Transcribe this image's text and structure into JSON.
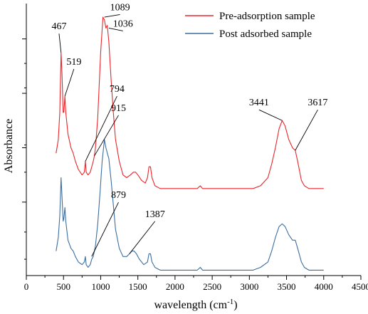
{
  "chart_data": {
    "type": "line",
    "xlabel": "wavelength",
    "xlabel_unit_base": "(cm",
    "xlabel_unit_sup": "-1",
    "xlabel_unit_close": ")",
    "ylabel": "Absorbance",
    "xlim": [
      0,
      4500
    ],
    "ylim": [
      0,
      1
    ],
    "x_ticks": [
      0,
      500,
      1000,
      1500,
      2000,
      2500,
      3000,
      3500,
      4000,
      4500
    ],
    "y_tick_labels_shown": false,
    "grid": false,
    "legend_position": "top-right",
    "series": [
      {
        "name": "Pre-adsorption sample",
        "color": "#e8262b",
        "points": [
          [
            400,
            0.45
          ],
          [
            430,
            0.5
          ],
          [
            450,
            0.6
          ],
          [
            467,
            0.82
          ],
          [
            480,
            0.74
          ],
          [
            495,
            0.6
          ],
          [
            505,
            0.6
          ],
          [
            519,
            0.66
          ],
          [
            530,
            0.6
          ],
          [
            560,
            0.52
          ],
          [
            600,
            0.47
          ],
          [
            630,
            0.45
          ],
          [
            660,
            0.42
          ],
          [
            700,
            0.39
          ],
          [
            750,
            0.37
          ],
          [
            780,
            0.38
          ],
          [
            794,
            0.42
          ],
          [
            805,
            0.38
          ],
          [
            830,
            0.37
          ],
          [
            860,
            0.38
          ],
          [
            900,
            0.42
          ],
          [
            915,
            0.44
          ],
          [
            930,
            0.47
          ],
          [
            960,
            0.58
          ],
          [
            1000,
            0.82
          ],
          [
            1030,
            0.95
          ],
          [
            1050,
            0.94
          ],
          [
            1070,
            0.91
          ],
          [
            1089,
            0.92
          ],
          [
            1110,
            0.86
          ],
          [
            1140,
            0.72
          ],
          [
            1170,
            0.6
          ],
          [
            1200,
            0.5
          ],
          [
            1250,
            0.42
          ],
          [
            1300,
            0.37
          ],
          [
            1350,
            0.36
          ],
          [
            1400,
            0.37
          ],
          [
            1440,
            0.38
          ],
          [
            1470,
            0.38
          ],
          [
            1500,
            0.37
          ],
          [
            1550,
            0.35
          ],
          [
            1600,
            0.34
          ],
          [
            1630,
            0.36
          ],
          [
            1650,
            0.4
          ],
          [
            1670,
            0.4
          ],
          [
            1690,
            0.36
          ],
          [
            1730,
            0.33
          ],
          [
            1800,
            0.32
          ],
          [
            2000,
            0.32
          ],
          [
            2300,
            0.32
          ],
          [
            2340,
            0.33
          ],
          [
            2370,
            0.32
          ],
          [
            2600,
            0.32
          ],
          [
            2900,
            0.32
          ],
          [
            3050,
            0.32
          ],
          [
            3150,
            0.33
          ],
          [
            3250,
            0.36
          ],
          [
            3300,
            0.41
          ],
          [
            3350,
            0.47
          ],
          [
            3400,
            0.54
          ],
          [
            3441,
            0.57
          ],
          [
            3480,
            0.55
          ],
          [
            3530,
            0.5
          ],
          [
            3580,
            0.47
          ],
          [
            3617,
            0.46
          ],
          [
            3650,
            0.42
          ],
          [
            3700,
            0.35
          ],
          [
            3740,
            0.33
          ],
          [
            3800,
            0.32
          ],
          [
            4000,
            0.32
          ]
        ]
      },
      {
        "name": "Post adsorbed sample",
        "color": "#3b6ea0",
        "points": [
          [
            400,
            0.09
          ],
          [
            430,
            0.14
          ],
          [
            450,
            0.22
          ],
          [
            467,
            0.36
          ],
          [
            480,
            0.29
          ],
          [
            495,
            0.2
          ],
          [
            505,
            0.21
          ],
          [
            519,
            0.25
          ],
          [
            530,
            0.2
          ],
          [
            560,
            0.13
          ],
          [
            600,
            0.1
          ],
          [
            630,
            0.09
          ],
          [
            660,
            0.07
          ],
          [
            700,
            0.05
          ],
          [
            750,
            0.04
          ],
          [
            780,
            0.05
          ],
          [
            794,
            0.07
          ],
          [
            805,
            0.04
          ],
          [
            830,
            0.03
          ],
          [
            860,
            0.04
          ],
          [
            879,
            0.06
          ],
          [
            900,
            0.07
          ],
          [
            930,
            0.11
          ],
          [
            960,
            0.19
          ],
          [
            990,
            0.3
          ],
          [
            1020,
            0.42
          ],
          [
            1050,
            0.5
          ],
          [
            1070,
            0.47
          ],
          [
            1090,
            0.45
          ],
          [
            1110,
            0.43
          ],
          [
            1140,
            0.35
          ],
          [
            1170,
            0.26
          ],
          [
            1200,
            0.17
          ],
          [
            1250,
            0.1
          ],
          [
            1300,
            0.07
          ],
          [
            1350,
            0.07
          ],
          [
            1387,
            0.08
          ],
          [
            1420,
            0.09
          ],
          [
            1450,
            0.09
          ],
          [
            1480,
            0.08
          ],
          [
            1520,
            0.06
          ],
          [
            1580,
            0.04
          ],
          [
            1630,
            0.05
          ],
          [
            1650,
            0.08
          ],
          [
            1670,
            0.08
          ],
          [
            1690,
            0.05
          ],
          [
            1730,
            0.03
          ],
          [
            1800,
            0.02
          ],
          [
            2000,
            0.02
          ],
          [
            2300,
            0.02
          ],
          [
            2340,
            0.03
          ],
          [
            2370,
            0.02
          ],
          [
            2600,
            0.02
          ],
          [
            2900,
            0.02
          ],
          [
            3050,
            0.02
          ],
          [
            3150,
            0.03
          ],
          [
            3250,
            0.05
          ],
          [
            3300,
            0.09
          ],
          [
            3350,
            0.14
          ],
          [
            3400,
            0.18
          ],
          [
            3441,
            0.19
          ],
          [
            3480,
            0.18
          ],
          [
            3530,
            0.15
          ],
          [
            3580,
            0.13
          ],
          [
            3617,
            0.13
          ],
          [
            3650,
            0.1
          ],
          [
            3700,
            0.05
          ],
          [
            3740,
            0.03
          ],
          [
            3800,
            0.02
          ],
          [
            4000,
            0.02
          ]
        ]
      }
    ],
    "annotations": [
      {
        "text": "467",
        "x": 467,
        "y": 0.82,
        "tx": 440,
        "ty": 0.9,
        "leader": true
      },
      {
        "text": "519",
        "x": 519,
        "y": 0.66,
        "tx": 640,
        "ty": 0.77,
        "leader": true
      },
      {
        "text": "1089",
        "x": 1050,
        "y": 0.95,
        "tx": 1260,
        "ty": 0.97,
        "leader": true
      },
      {
        "text": "1036",
        "x": 1110,
        "y": 0.91,
        "tx": 1300,
        "ty": 0.91,
        "leader": true
      },
      {
        "text": "794",
        "x": 794,
        "y": 0.42,
        "tx": 1220,
        "ty": 0.67,
        "leader": true
      },
      {
        "text": "915",
        "x": 915,
        "y": 0.44,
        "tx": 1240,
        "ty": 0.6,
        "leader": true
      },
      {
        "text": "879",
        "x": 879,
        "y": 0.07,
        "tx": 1240,
        "ty": 0.28,
        "leader": true
      },
      {
        "text": "1387",
        "x": 1387,
        "y": 0.08,
        "tx": 1730,
        "ty": 0.21,
        "leader": true
      },
      {
        "text": "3441",
        "x": 3441,
        "y": 0.57,
        "tx": 3130,
        "ty": 0.62,
        "leader": true
      },
      {
        "text": "3617",
        "x": 3617,
        "y": 0.46,
        "tx": 3920,
        "ty": 0.62,
        "leader": true
      }
    ]
  }
}
